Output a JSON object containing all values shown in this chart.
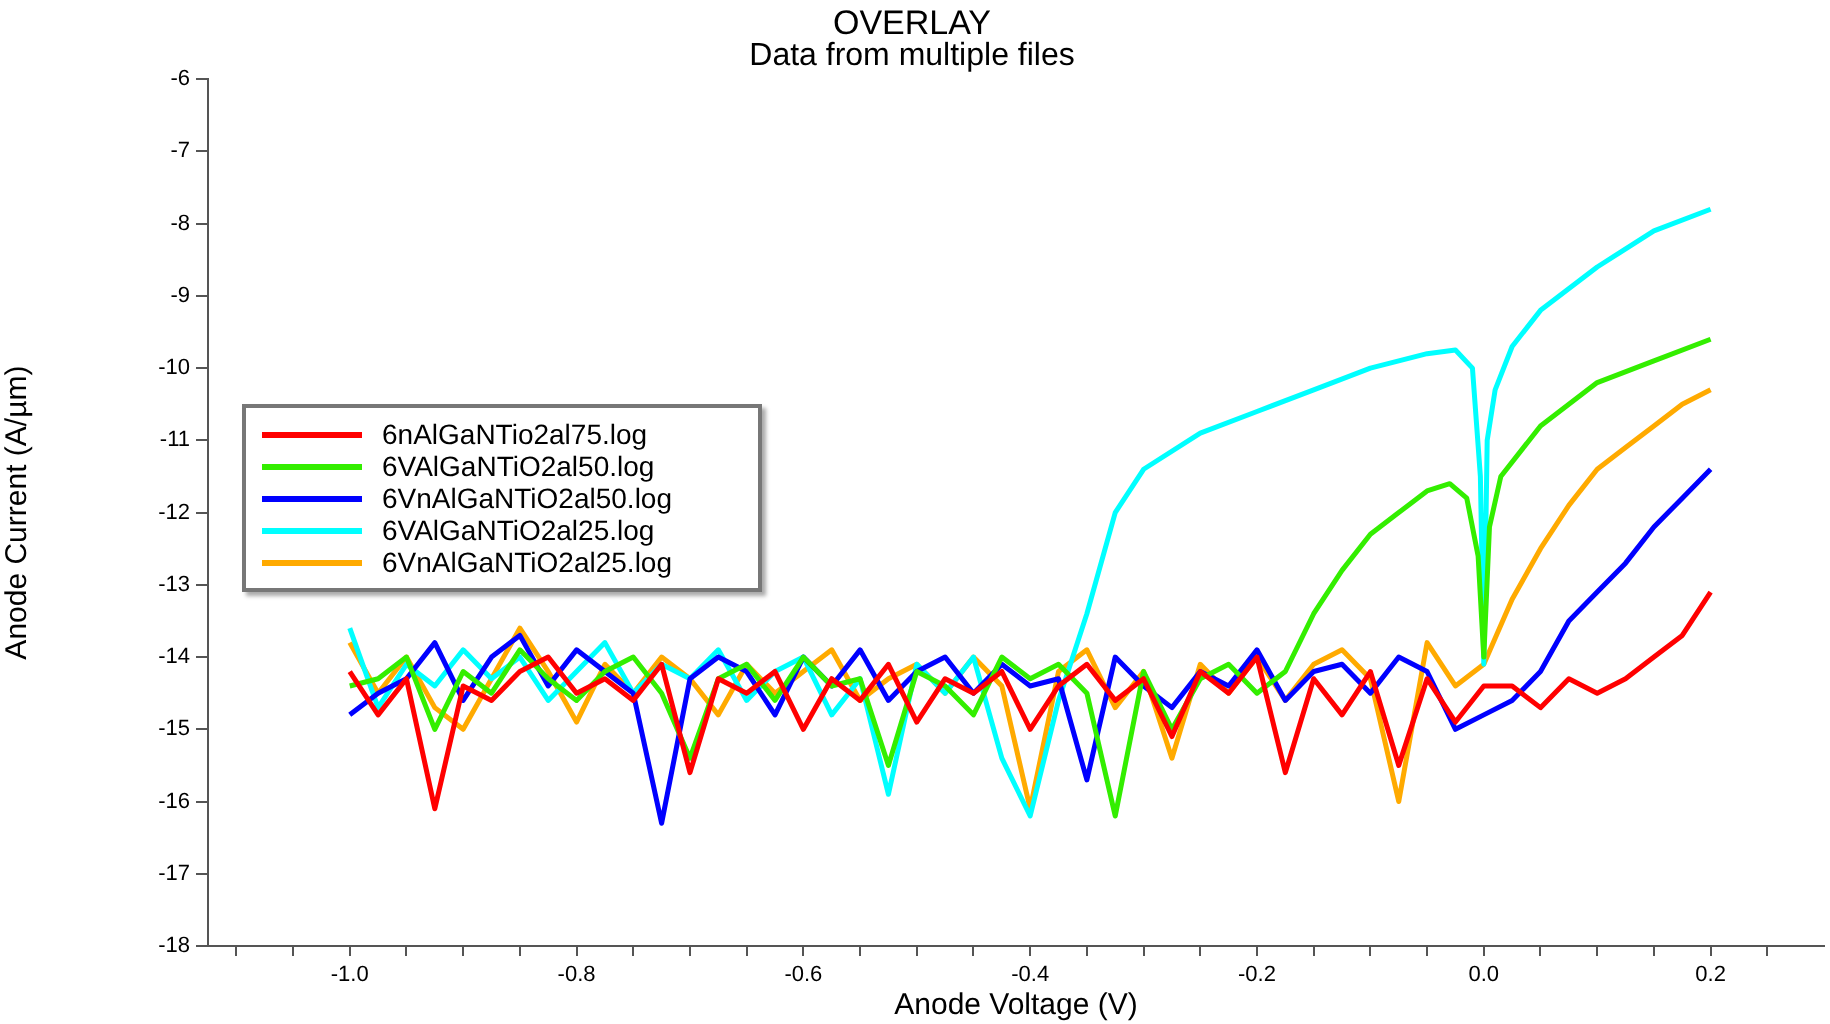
{
  "chart_data": {
    "type": "line",
    "title": "OVERLAY",
    "subtitle": "Data from multiple files",
    "xlabel": "Anode Voltage (V)",
    "ylabel": "Anode Current (A/µm)",
    "xlim": [
      -1.125,
      0.3
    ],
    "xticks": [
      {
        "value": -1.1,
        "label": null
      },
      {
        "value": -1.05,
        "label": null
      },
      {
        "value": -1,
        "label": "-1.0"
      },
      {
        "value": -0.95,
        "label": null
      },
      {
        "value": -0.9,
        "label": null
      },
      {
        "value": -0.85,
        "label": null
      },
      {
        "value": -0.8,
        "label": "-0.8"
      },
      {
        "value": -0.75,
        "label": null
      },
      {
        "value": -0.7,
        "label": null
      },
      {
        "value": -0.65,
        "label": null
      },
      {
        "value": -0.6,
        "label": "-0.6"
      },
      {
        "value": -0.55,
        "label": null
      },
      {
        "value": -0.5,
        "label": null
      },
      {
        "value": -0.45,
        "label": null
      },
      {
        "value": -0.4,
        "label": "-0.4"
      },
      {
        "value": -0.35,
        "label": null
      },
      {
        "value": -0.3,
        "label": null
      },
      {
        "value": -0.25,
        "label": null
      },
      {
        "value": -0.2,
        "label": "-0.2"
      },
      {
        "value": -0.15,
        "label": null
      },
      {
        "value": -0.1,
        "label": null
      },
      {
        "value": -0.05,
        "label": null
      },
      {
        "value": 0,
        "label": "0.0"
      },
      {
        "value": 0.05,
        "label": null
      },
      {
        "value": 0.1,
        "label": null
      },
      {
        "value": 0.15,
        "label": null
      },
      {
        "value": 0.2,
        "label": "0.2"
      },
      {
        "value": 0.25,
        "label": null
      }
    ],
    "ylim": [
      -18,
      -6
    ],
    "yticks": [
      -18,
      -17,
      -16,
      -15,
      -14,
      -13,
      -12,
      -11,
      -10,
      -9,
      -8,
      -7,
      -6
    ],
    "grid": false,
    "legend": "left",
    "marker": "none",
    "line_style": "solid",
    "series": [
      {
        "name": "6nAlGaNTio2al75.log",
        "color": "#ff0000",
        "x": [
          -1,
          -0.975,
          -0.95,
          -0.925,
          -0.9,
          -0.875,
          -0.85,
          -0.825,
          -0.8,
          -0.775,
          -0.75,
          -0.725,
          -0.7,
          -0.675,
          -0.65,
          -0.625,
          -0.6,
          -0.575,
          -0.55,
          -0.525,
          -0.5,
          -0.475,
          -0.45,
          -0.425,
          -0.4,
          -0.375,
          -0.35,
          -0.325,
          -0.3,
          -0.275,
          -0.25,
          -0.225,
          -0.2,
          -0.175,
          -0.15,
          -0.125,
          -0.1,
          -0.075,
          -0.05,
          -0.025,
          0,
          0.025,
          0.05,
          0.075,
          0.1,
          0.125,
          0.15,
          0.175,
          0.2
        ],
        "values": [
          -14.2,
          -14.8,
          -14.3,
          -16.1,
          -14.4,
          -14.6,
          -14.2,
          -14.0,
          -14.5,
          -14.3,
          -14.6,
          -14.1,
          -15.6,
          -14.3,
          -14.5,
          -14.2,
          -15.0,
          -14.3,
          -14.6,
          -14.1,
          -14.9,
          -14.3,
          -14.5,
          -14.2,
          -15.0,
          -14.4,
          -14.1,
          -14.6,
          -14.3,
          -15.1,
          -14.2,
          -14.5,
          -14.0,
          -15.6,
          -14.3,
          -14.8,
          -14.2,
          -15.5,
          -14.3,
          -14.9,
          -14.4,
          -14.4,
          -14.7,
          -14.3,
          -14.5,
          -14.3,
          -14.0,
          -13.7,
          -13.1
        ]
      },
      {
        "name": "6VAlGaNTiO2al50.log",
        "color": "#33ee00",
        "x": [
          -1,
          -0.975,
          -0.95,
          -0.925,
          -0.9,
          -0.875,
          -0.85,
          -0.825,
          -0.8,
          -0.775,
          -0.75,
          -0.725,
          -0.7,
          -0.675,
          -0.65,
          -0.625,
          -0.6,
          -0.575,
          -0.55,
          -0.525,
          -0.5,
          -0.475,
          -0.45,
          -0.425,
          -0.4,
          -0.375,
          -0.35,
          -0.325,
          -0.3,
          -0.275,
          -0.25,
          -0.225,
          -0.2,
          -0.175,
          -0.15,
          -0.125,
          -0.1,
          -0.075,
          -0.05,
          -0.03,
          -0.015,
          -0.005,
          0,
          0.005,
          0.015,
          0.05,
          0.1,
          0.15,
          0.2
        ],
        "values": [
          -14.4,
          -14.3,
          -14.0,
          -15.0,
          -14.2,
          -14.5,
          -13.9,
          -14.3,
          -14.6,
          -14.2,
          -14.0,
          -14.5,
          -15.4,
          -14.3,
          -14.1,
          -14.6,
          -14.0,
          -14.4,
          -14.3,
          -15.5,
          -14.2,
          -14.4,
          -14.8,
          -14.0,
          -14.3,
          -14.1,
          -14.5,
          -16.2,
          -14.2,
          -15.0,
          -14.3,
          -14.1,
          -14.5,
          -14.2,
          -13.4,
          -12.8,
          -12.3,
          -12.0,
          -11.7,
          -11.6,
          -11.8,
          -12.6,
          -14.0,
          -12.2,
          -11.5,
          -10.8,
          -10.2,
          -9.9,
          -9.6
        ]
      },
      {
        "name": "6VnAlGaNTiO2al50.log",
        "color": "#0000ff",
        "x": [
          -1,
          -0.975,
          -0.95,
          -0.925,
          -0.9,
          -0.875,
          -0.85,
          -0.825,
          -0.8,
          -0.775,
          -0.75,
          -0.725,
          -0.7,
          -0.675,
          -0.65,
          -0.625,
          -0.6,
          -0.575,
          -0.55,
          -0.525,
          -0.5,
          -0.475,
          -0.45,
          -0.425,
          -0.4,
          -0.375,
          -0.35,
          -0.325,
          -0.3,
          -0.275,
          -0.25,
          -0.225,
          -0.2,
          -0.175,
          -0.15,
          -0.125,
          -0.1,
          -0.075,
          -0.05,
          -0.025,
          0,
          0.025,
          0.05,
          0.075,
          0.1,
          0.125,
          0.15,
          0.175,
          0.2
        ],
        "values": [
          -14.8,
          -14.5,
          -14.3,
          -13.8,
          -14.6,
          -14.0,
          -13.7,
          -14.4,
          -13.9,
          -14.2,
          -14.5,
          -16.3,
          -14.3,
          -14.0,
          -14.2,
          -14.8,
          -14.0,
          -14.4,
          -13.9,
          -14.6,
          -14.2,
          -14.0,
          -14.5,
          -14.1,
          -14.4,
          -14.3,
          -15.7,
          -14.0,
          -14.4,
          -14.7,
          -14.2,
          -14.4,
          -13.9,
          -14.6,
          -14.2,
          -14.1,
          -14.5,
          -14.0,
          -14.2,
          -15.0,
          -14.8,
          -14.6,
          -14.2,
          -13.5,
          -13.1,
          -12.7,
          -12.2,
          -11.8,
          -11.4
        ]
      },
      {
        "name": "6VAlGaNTiO2al25.log",
        "color": "#00ffff",
        "x": [
          -1,
          -0.975,
          -0.95,
          -0.925,
          -0.9,
          -0.875,
          -0.85,
          -0.825,
          -0.8,
          -0.775,
          -0.75,
          -0.725,
          -0.7,
          -0.675,
          -0.65,
          -0.625,
          -0.6,
          -0.575,
          -0.55,
          -0.525,
          -0.5,
          -0.475,
          -0.45,
          -0.425,
          -0.4,
          -0.375,
          -0.35,
          -0.325,
          -0.3,
          -0.25,
          -0.2,
          -0.15,
          -0.1,
          -0.05,
          -0.025,
          -0.01,
          -0.003,
          0,
          0.003,
          0.01,
          0.025,
          0.05,
          0.1,
          0.15,
          0.2
        ],
        "values": [
          -13.6,
          -14.7,
          -14.1,
          -14.4,
          -13.9,
          -14.3,
          -14.0,
          -14.6,
          -14.2,
          -13.8,
          -14.5,
          -14.1,
          -14.3,
          -13.9,
          -14.6,
          -14.2,
          -14.0,
          -14.8,
          -14.3,
          -15.9,
          -14.1,
          -14.5,
          -14.0,
          -15.4,
          -16.2,
          -14.6,
          -13.4,
          -12.0,
          -11.4,
          -10.9,
          -10.6,
          -10.3,
          -10.0,
          -9.8,
          -9.75,
          -10.0,
          -11.5,
          -14.1,
          -11.0,
          -10.3,
          -9.7,
          -9.2,
          -8.6,
          -8.1,
          -7.8
        ]
      },
      {
        "name": "6VnAlGaNTiO2al25.log",
        "color": "#ffaa00",
        "x": [
          -1,
          -0.975,
          -0.95,
          -0.925,
          -0.9,
          -0.875,
          -0.85,
          -0.825,
          -0.8,
          -0.775,
          -0.75,
          -0.725,
          -0.7,
          -0.675,
          -0.65,
          -0.625,
          -0.6,
          -0.575,
          -0.55,
          -0.525,
          -0.5,
          -0.475,
          -0.45,
          -0.425,
          -0.4,
          -0.375,
          -0.35,
          -0.325,
          -0.3,
          -0.275,
          -0.25,
          -0.225,
          -0.2,
          -0.175,
          -0.15,
          -0.125,
          -0.1,
          -0.075,
          -0.05,
          -0.025,
          0,
          0.025,
          0.05,
          0.075,
          0.1,
          0.125,
          0.15,
          0.175,
          0.2
        ],
        "values": [
          -13.8,
          -14.5,
          -14.0,
          -14.7,
          -15.0,
          -14.3,
          -13.6,
          -14.2,
          -14.9,
          -14.1,
          -14.5,
          -14.0,
          -14.3,
          -14.8,
          -14.1,
          -14.5,
          -14.2,
          -13.9,
          -14.6,
          -14.3,
          -14.1,
          -14.5,
          -14.0,
          -14.4,
          -16.1,
          -14.2,
          -13.9,
          -14.7,
          -14.2,
          -15.4,
          -14.1,
          -14.5,
          -14.0,
          -14.6,
          -14.1,
          -13.9,
          -14.3,
          -16.0,
          -13.8,
          -14.4,
          -14.1,
          -13.2,
          -12.5,
          -11.9,
          -11.4,
          -11.1,
          -10.8,
          -10.5,
          -10.3
        ]
      }
    ]
  }
}
